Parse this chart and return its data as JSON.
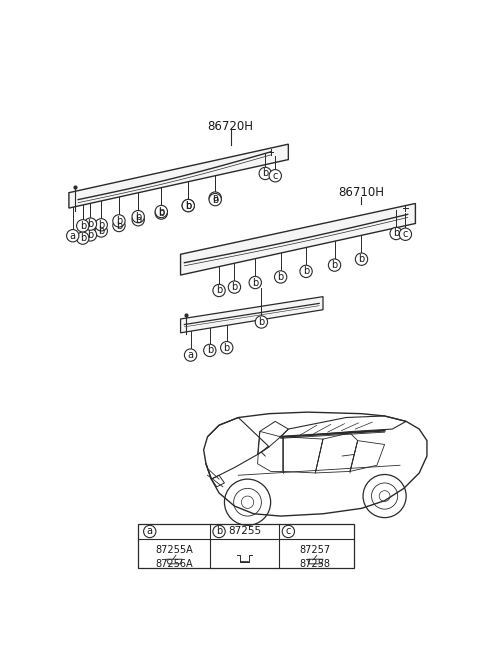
{
  "background_color": "#ffffff",
  "line_color": "#2a2a2a",
  "text_color": "#1a1a1a",
  "label_86720H": "86720H",
  "label_86710H": "86710H",
  "part_a_codes": "87255A\n87256A",
  "part_b_code": "87255",
  "part_c_codes": "87257\n87258"
}
